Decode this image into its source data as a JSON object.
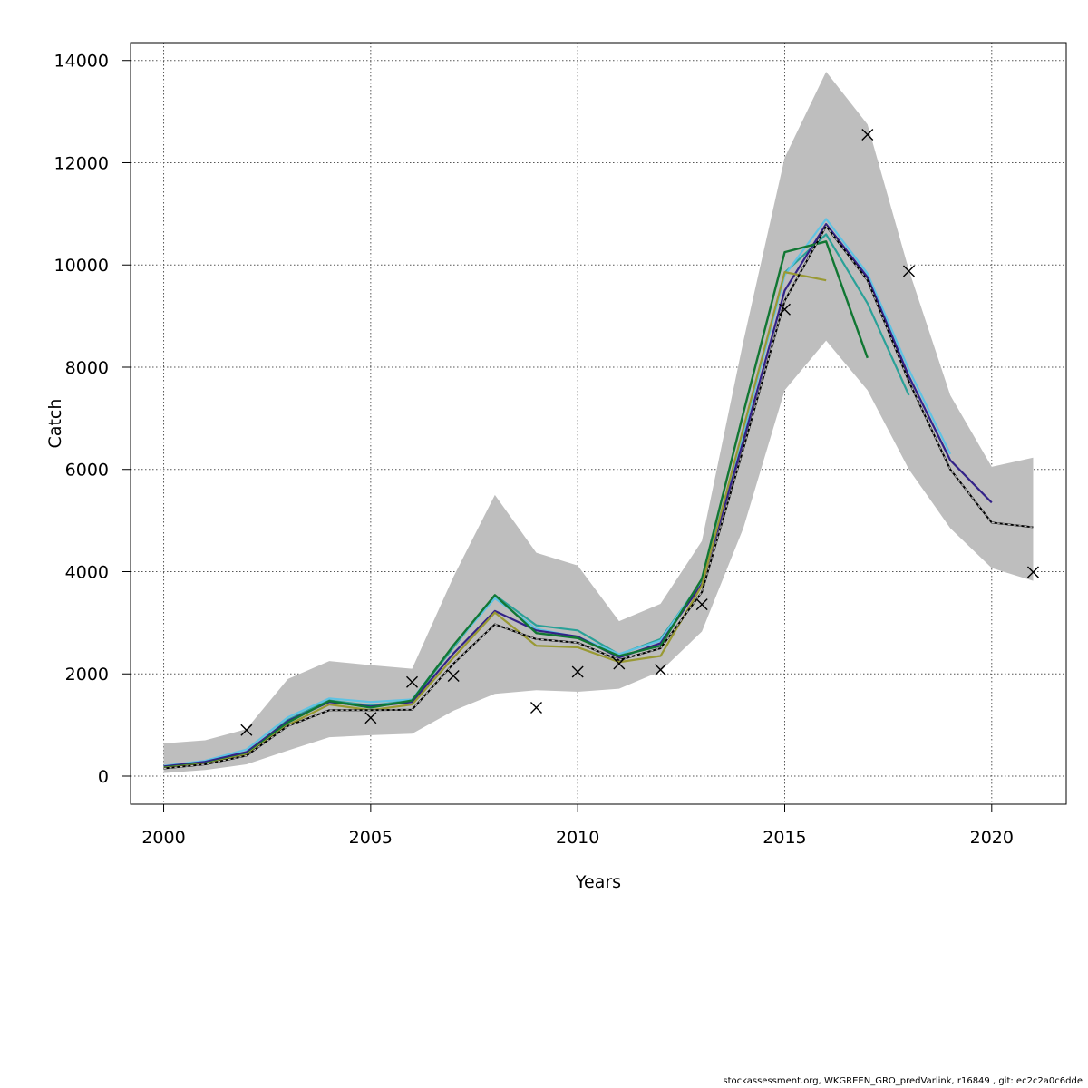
{
  "chart_data": {
    "type": "line",
    "xlabel": "Years",
    "ylabel": "Catch",
    "xlim": [
      1999.2,
      2021.8
    ],
    "ylim": [
      -550,
      14350
    ],
    "x_ticks": [
      2000,
      2005,
      2010,
      2015,
      2020
    ],
    "y_ticks": [
      0,
      2000,
      4000,
      6000,
      8000,
      10000,
      12000,
      14000
    ],
    "grid": true,
    "band": {
      "x": [
        2000,
        2001,
        2002,
        2003,
        2004,
        2005,
        2006,
        2007,
        2008,
        2009,
        2010,
        2011,
        2012,
        2013,
        2014,
        2015,
        2016,
        2017,
        2018,
        2019,
        2020,
        2021
      ],
      "upper": [
        640,
        700,
        920,
        1900,
        2250,
        2170,
        2100,
        3900,
        5500,
        4370,
        4120,
        3030,
        3370,
        4600,
        8500,
        12100,
        13780,
        12750,
        9900,
        7450,
        6050,
        6230
      ],
      "lower": [
        60,
        120,
        230,
        500,
        760,
        800,
        830,
        1280,
        1610,
        1680,
        1650,
        1710,
        2050,
        2830,
        4850,
        7550,
        8520,
        7550,
        6000,
        4850,
        4070,
        3820
      ],
      "color": "#bebebe"
    },
    "series": [
      {
        "x": [
          2000,
          2001,
          2002,
          2003,
          2004,
          2005,
          2006,
          2007,
          2008,
          2009,
          2010,
          2011,
          2012,
          2013,
          2014,
          2015,
          2016,
          2017,
          2018
        ],
        "values": [
          180,
          260,
          450,
          1100,
          1480,
          1380,
          1480,
          2520,
          3540,
          2950,
          2850,
          2380,
          2680,
          3820,
          6700,
          9850,
          10600,
          9250,
          7450
        ],
        "color": "#2aa198",
        "width": 2.2
      },
      {
        "x": [
          2000,
          2001,
          2002,
          2003,
          2004,
          2005,
          2006,
          2007,
          2008,
          2009,
          2010,
          2011,
          2012,
          2013,
          2014,
          2015,
          2016,
          2017,
          2018,
          2019
        ],
        "values": [
          200,
          300,
          520,
          1150,
          1520,
          1450,
          1500,
          2550,
          3480,
          2880,
          2720,
          2390,
          2650,
          3830,
          6720,
          9800,
          10900,
          9830,
          7950,
          6300
        ],
        "color": "#5fc3e4",
        "width": 2.2
      },
      {
        "x": [
          2000,
          2001,
          2002,
          2003,
          2004,
          2005,
          2006,
          2007,
          2008,
          2009,
          2010,
          2011,
          2012,
          2013,
          2014,
          2015,
          2016,
          2017,
          2018,
          2019,
          2020
        ],
        "values": [
          190,
          280,
          470,
          1080,
          1450,
          1360,
          1450,
          2400,
          3230,
          2850,
          2730,
          2320,
          2600,
          3760,
          6550,
          9500,
          10800,
          9760,
          7820,
          6180,
          5350
        ],
        "color": "#332288",
        "width": 2.2
      },
      {
        "x": [
          2000,
          2001,
          2002,
          2003,
          2004,
          2005,
          2006,
          2007,
          2008,
          2009,
          2010,
          2011,
          2012,
          2013,
          2014,
          2015,
          2016,
          2017
        ],
        "values": [
          170,
          250,
          430,
          1050,
          1470,
          1340,
          1480,
          2560,
          3540,
          2800,
          2700,
          2350,
          2550,
          3860,
          7100,
          10250,
          10460,
          8180
        ],
        "color": "#117733",
        "width": 2.4
      },
      {
        "x": [
          2000,
          2001,
          2002,
          2003,
          2004,
          2005,
          2006,
          2007,
          2008,
          2009,
          2010,
          2011,
          2012,
          2013,
          2014,
          2015,
          2016
        ],
        "values": [
          160,
          240,
          420,
          1000,
          1400,
          1290,
          1400,
          2320,
          3200,
          2550,
          2520,
          2230,
          2350,
          3730,
          6800,
          9860,
          9700
        ],
        "color": "#999933",
        "width": 2.2
      },
      {
        "x": [
          2000,
          2001,
          2002,
          2003,
          2004,
          2005,
          2006,
          2007,
          2008,
          2009,
          2010,
          2011,
          2012,
          2013,
          2014,
          2015,
          2016,
          2017,
          2018,
          2019,
          2020,
          2021
        ],
        "values": [
          150,
          230,
          400,
          980,
          1290,
          1290,
          1300,
          2200,
          2970,
          2680,
          2610,
          2270,
          2500,
          3600,
          6400,
          9300,
          10760,
          9700,
          7720,
          6000,
          4960,
          4870
        ],
        "color": "#000000",
        "width": 2.0,
        "dashed_overlay": true
      }
    ],
    "observations": {
      "x": [
        2002,
        2005,
        2006,
        2007,
        2009,
        2010,
        2011,
        2012,
        2013,
        2015,
        2017,
        2018,
        2021
      ],
      "values": [
        900,
        1140,
        1840,
        1960,
        1340,
        2040,
        2200,
        2080,
        3360,
        9130,
        12550,
        9880,
        3990
      ],
      "marker": "x",
      "color": "#000000"
    }
  },
  "footer": "stockassessment.org, WKGREEN_GRO_predVarlink, r16849 , git: ec2c2a0c6dde"
}
